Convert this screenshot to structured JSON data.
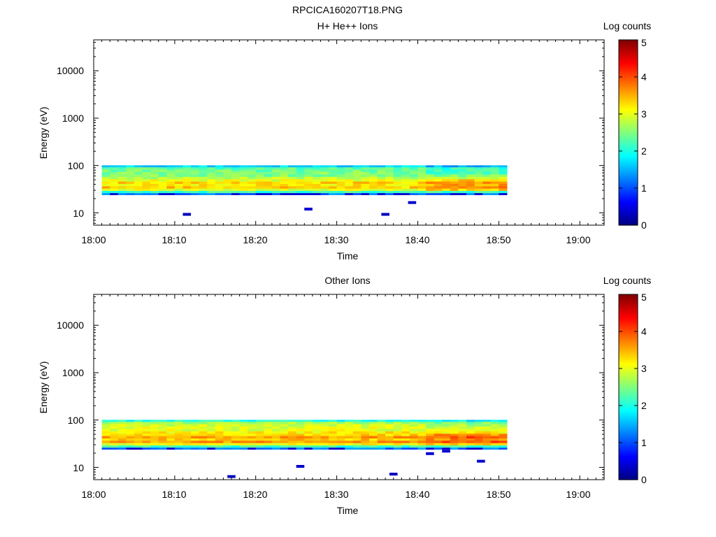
{
  "figure_title": "RPCICA160207T18.PNG",
  "colorbar_stops": [
    "#00007f",
    "#0000ff",
    "#007fff",
    "#00ffff",
    "#7fff7f",
    "#ffff00",
    "#ff7f00",
    "#ff0000",
    "#7f0000"
  ],
  "chart_data": [
    {
      "type": "heatmap",
      "title": "H+ He++ Ions",
      "xlabel": "Time",
      "ylabel": "Energy (eV)",
      "x_ticks": [
        "18:00",
        "18:10",
        "18:20",
        "18:30",
        "18:40",
        "18:50",
        "19:00"
      ],
      "x_range_minutes": [
        0,
        63
      ],
      "y_scale": "log",
      "y_ticks": [
        "10",
        "100",
        "1000",
        "10000"
      ],
      "y_range_eV": [
        5.5,
        45000
      ],
      "colorbar_label": "Log counts",
      "colorbar_ticks": [
        "0",
        "1",
        "2",
        "3",
        "4",
        "5"
      ],
      "colorbar_range": [
        0,
        5
      ],
      "data_time_range_minutes": [
        1,
        51
      ],
      "energy_bins_eV": [
        25,
        28,
        31,
        35,
        39,
        44,
        49,
        55,
        62,
        70,
        78,
        88,
        98
      ],
      "band_profile_log_counts": [
        1.2,
        2.2,
        3.0,
        3.4,
        3.2,
        3.3,
        3.0,
        2.8,
        2.5,
        2.5,
        2.4,
        2.3,
        1.7
      ],
      "sporadic_low_energy_points": [
        {
          "t": 11,
          "e": 9.3,
          "v": 0.3
        },
        {
          "t": 26,
          "e": 12,
          "v": 0.4
        },
        {
          "t": 35.5,
          "e": 9.3,
          "v": 0.3
        },
        {
          "t": 38.8,
          "e": 16.5,
          "v": 0.4
        }
      ]
    },
    {
      "type": "heatmap",
      "title": "Other Ions",
      "xlabel": "Time",
      "ylabel": "Energy (eV)",
      "x_ticks": [
        "18:00",
        "18:10",
        "18:20",
        "18:30",
        "18:40",
        "18:50",
        "19:00"
      ],
      "x_range_minutes": [
        0,
        63
      ],
      "y_scale": "log",
      "y_ticks": [
        "10",
        "100",
        "1000",
        "10000"
      ],
      "y_range_eV": [
        5.5,
        45000
      ],
      "colorbar_label": "Log counts",
      "colorbar_ticks": [
        "0",
        "1",
        "2",
        "3",
        "4",
        "5"
      ],
      "colorbar_range": [
        0,
        5
      ],
      "data_time_range_minutes": [
        1,
        51
      ],
      "energy_bins_eV": [
        25,
        28,
        31,
        35,
        39,
        44,
        49,
        55,
        62,
        70,
        78,
        88,
        98
      ],
      "band_profile_log_counts": [
        1.2,
        2.2,
        3.1,
        3.6,
        3.4,
        3.6,
        3.3,
        3.2,
        3.0,
        3.0,
        2.9,
        2.7,
        2.0
      ],
      "sporadic_low_energy_points": [
        {
          "t": 16.5,
          "e": 6.4,
          "v": 0.3
        },
        {
          "t": 25,
          "e": 10.5,
          "v": 0.4
        },
        {
          "t": 36.5,
          "e": 7.2,
          "v": 0.3
        },
        {
          "t": 41,
          "e": 19.5,
          "v": 0.4
        },
        {
          "t": 43,
          "e": 22,
          "v": 0.4
        },
        {
          "t": 47.3,
          "e": 13.5,
          "v": 0.4
        }
      ]
    }
  ]
}
